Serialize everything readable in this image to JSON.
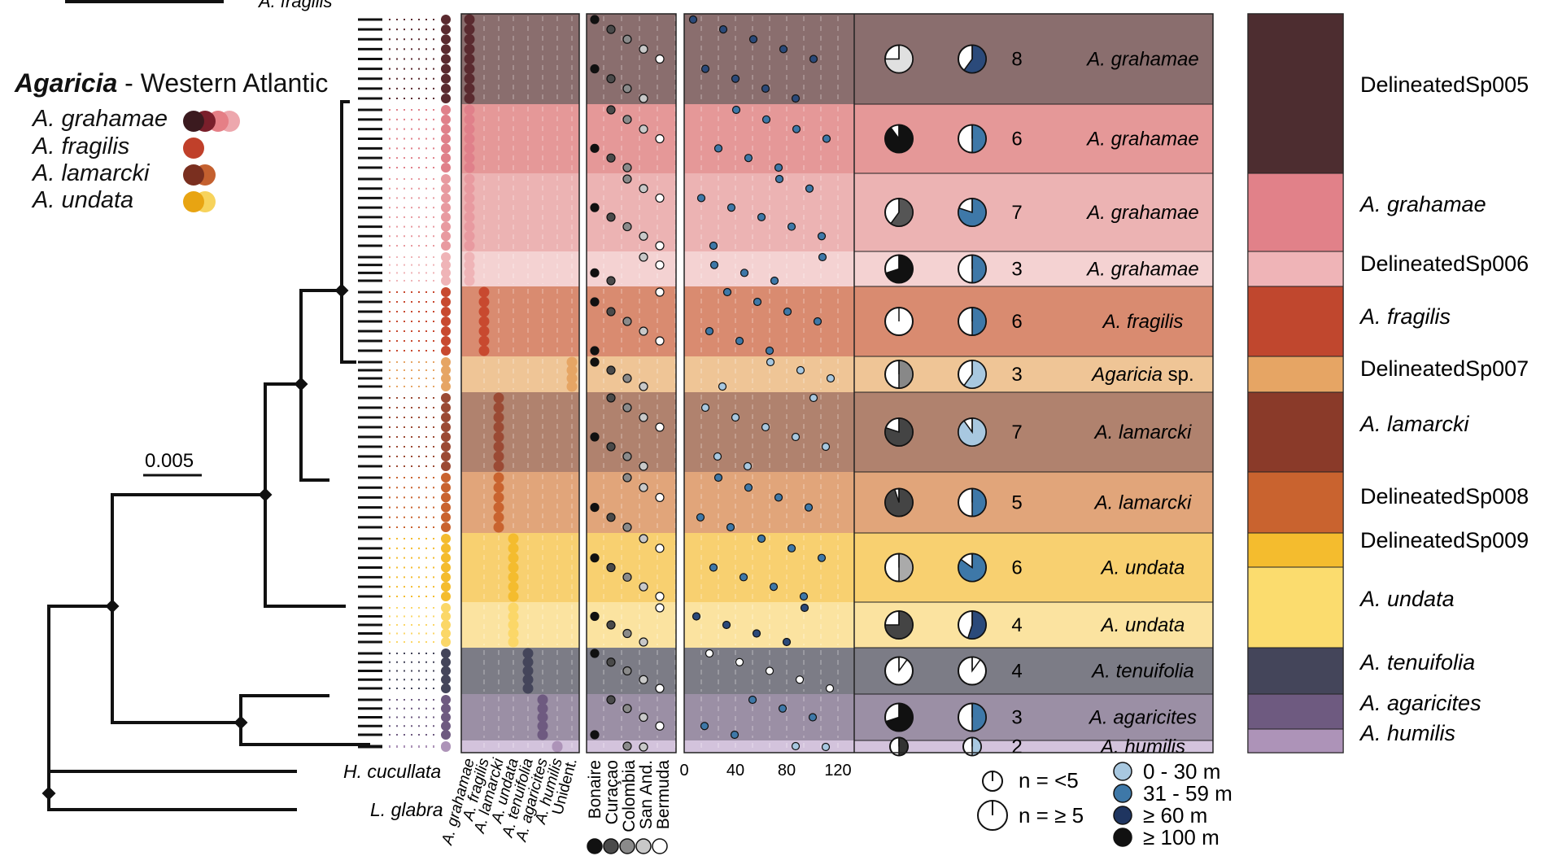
{
  "title": {
    "genus": "Agaricia",
    "region": " - Western Atlantic"
  },
  "legend_species": [
    {
      "name": "A. grahamae",
      "colors": [
        "#3b1a1f",
        "#7a1f2b",
        "#e57f86",
        "#eda7ad"
      ]
    },
    {
      "name": "A. fragilis",
      "colors": [
        "#c0402a"
      ]
    },
    {
      "name": "A. lamarcki",
      "colors": [
        "#7a2f1f",
        "#c4602f"
      ]
    },
    {
      "name": "A. undata",
      "colors": [
        "#e8a412",
        "#f7d35c"
      ]
    }
  ],
  "scale_bar": "0.005",
  "top_clipped_label": "A. fragilis",
  "outgroups": [
    "H. cucullata",
    "L. glabra"
  ],
  "species_columns": [
    "A. grahamae",
    "A. fragilis",
    "A. lamarcki",
    "A. undata",
    "A. tenuifolia",
    "A. agaricites",
    "A. humilis",
    "Unident."
  ],
  "location_columns": [
    "Bonaire",
    "Curaçao",
    "Colombia",
    "San And.",
    "Bermuda"
  ],
  "location_colors": [
    "#111111",
    "#4a4a4a",
    "#8a8a8a",
    "#c8c8c8",
    "#ffffff"
  ],
  "depth_ticks": [
    "0",
    "40",
    "80",
    "120"
  ],
  "clusters": [
    {
      "n": "8",
      "name": "A. grahamae",
      "bg": "#8a6e6e",
      "clade_pie": 0.75,
      "depth_pie": 0.6,
      "clade_color": "#e0e0e0",
      "depth_color": "#2b4a7a"
    },
    {
      "n": "6",
      "name": "A. grahamae",
      "bg": "#e59898",
      "clade_pie": 0.9,
      "depth_pie": 0.5,
      "clade_color": "#111111",
      "depth_color": "#3e78a8"
    },
    {
      "n": "7",
      "name": "A. grahamae",
      "bg": "#ecb3b3",
      "clade_pie": 0.6,
      "depth_pie": 0.8,
      "clade_color": "#555555",
      "depth_color": "#3e78a8"
    },
    {
      "n": "3",
      "name": "A. grahamae",
      "bg": "#f4d2d2",
      "clade_pie": 0.7,
      "depth_pie": 0.5,
      "clade_color": "#111111",
      "depth_color": "#3e78a8"
    },
    {
      "n": "6",
      "name": "A. fragilis",
      "bg": "#d98b70",
      "clade_pie": 0.0,
      "depth_pie": 0.5,
      "clade_color": "#ffffff",
      "depth_color": "#3e78a8"
    },
    {
      "n": "3",
      "name": "Agaricia sp.",
      "bg": "#efc596",
      "clade_pie": 0.5,
      "depth_pie": 0.6,
      "clade_color": "#888888",
      "depth_color": "#a8c8e0"
    },
    {
      "n": "7",
      "name": "A. lamarcki",
      "bg": "#b0826e",
      "clade_pie": 0.8,
      "depth_pie": 0.9,
      "clade_color": "#444444",
      "depth_color": "#a8c8e0"
    },
    {
      "n": "5",
      "name": "A. lamarcki",
      "bg": "#e1a57a",
      "clade_pie": 0.95,
      "depth_pie": 0.5,
      "clade_color": "#444444",
      "depth_color": "#3e78a8"
    },
    {
      "n": "6",
      "name": "A. undata",
      "bg": "#f8d070",
      "clade_pie": 0.5,
      "depth_pie": 0.85,
      "clade_color": "#aaaaaa",
      "depth_color": "#3e78a8"
    },
    {
      "n": "4",
      "name": "A. undata",
      "bg": "#fbe3a0",
      "clade_pie": 0.75,
      "depth_pie": 0.55,
      "clade_color": "#444444",
      "depth_color": "#2b4a7a"
    },
    {
      "n": "4",
      "name": "A. tenuifolia",
      "bg": "#7c7c86",
      "clade_pie": 0.1,
      "depth_pie": 0.1,
      "clade_color": "#ffffff",
      "depth_color": "#ffffff"
    },
    {
      "n": "3",
      "name": "A. agaricites",
      "bg": "#9b8fa5",
      "clade_pie": 0.7,
      "depth_pie": 0.5,
      "clade_color": "#111111",
      "depth_color": "#3e78a8"
    },
    {
      "n": "2",
      "name": "A. humilis",
      "bg": "#d3c3dc",
      "clade_pie": 0.5,
      "depth_pie": 0.5,
      "clade_color": "#333333",
      "depth_color": "#a8c8e0"
    }
  ],
  "delineated_groups": [
    {
      "label": "DelineatedSp005",
      "italic": false,
      "color": "#4d2d30"
    },
    {
      "label": "A. grahamae",
      "italic": true,
      "color": "#e18189"
    },
    {
      "label": "DelineatedSp006",
      "italic": false,
      "color": "#efb4b7"
    },
    {
      "label": "A. fragilis",
      "italic": true,
      "color": "#c0472e"
    },
    {
      "label": "DelineatedSp007",
      "italic": false,
      "color": "#e6a564"
    },
    {
      "label": "A. lamarcki",
      "italic": true,
      "color": "#8a3a29"
    },
    {
      "label": "DelineatedSp008",
      "italic": false,
      "color": "#c9632f"
    },
    {
      "label": "DelineatedSp009",
      "italic": false,
      "color": "#f4bc2e"
    },
    {
      "label": "A. undata",
      "italic": true,
      "color": "#fbdc6e"
    },
    {
      "label": "A. tenuifolia",
      "italic": true,
      "color": "#44455a"
    },
    {
      "label": "A. agaricites",
      "italic": true,
      "color": "#6e5a80"
    },
    {
      "label": "A. humilis",
      "italic": true,
      "color": "#ad93b8"
    }
  ],
  "sample_legend": {
    "small": "n = <5",
    "large": "n = ≥ 5"
  },
  "depth_legend": [
    {
      "label": "0 - 30 m",
      "color": "#a8c8e0"
    },
    {
      "label": "31 - 59 m",
      "color": "#3e78a8"
    },
    {
      "label": "≥ 60 m",
      "color": "#1f3560"
    },
    {
      "label": "≥ 100 m",
      "color": "#111111"
    }
  ]
}
